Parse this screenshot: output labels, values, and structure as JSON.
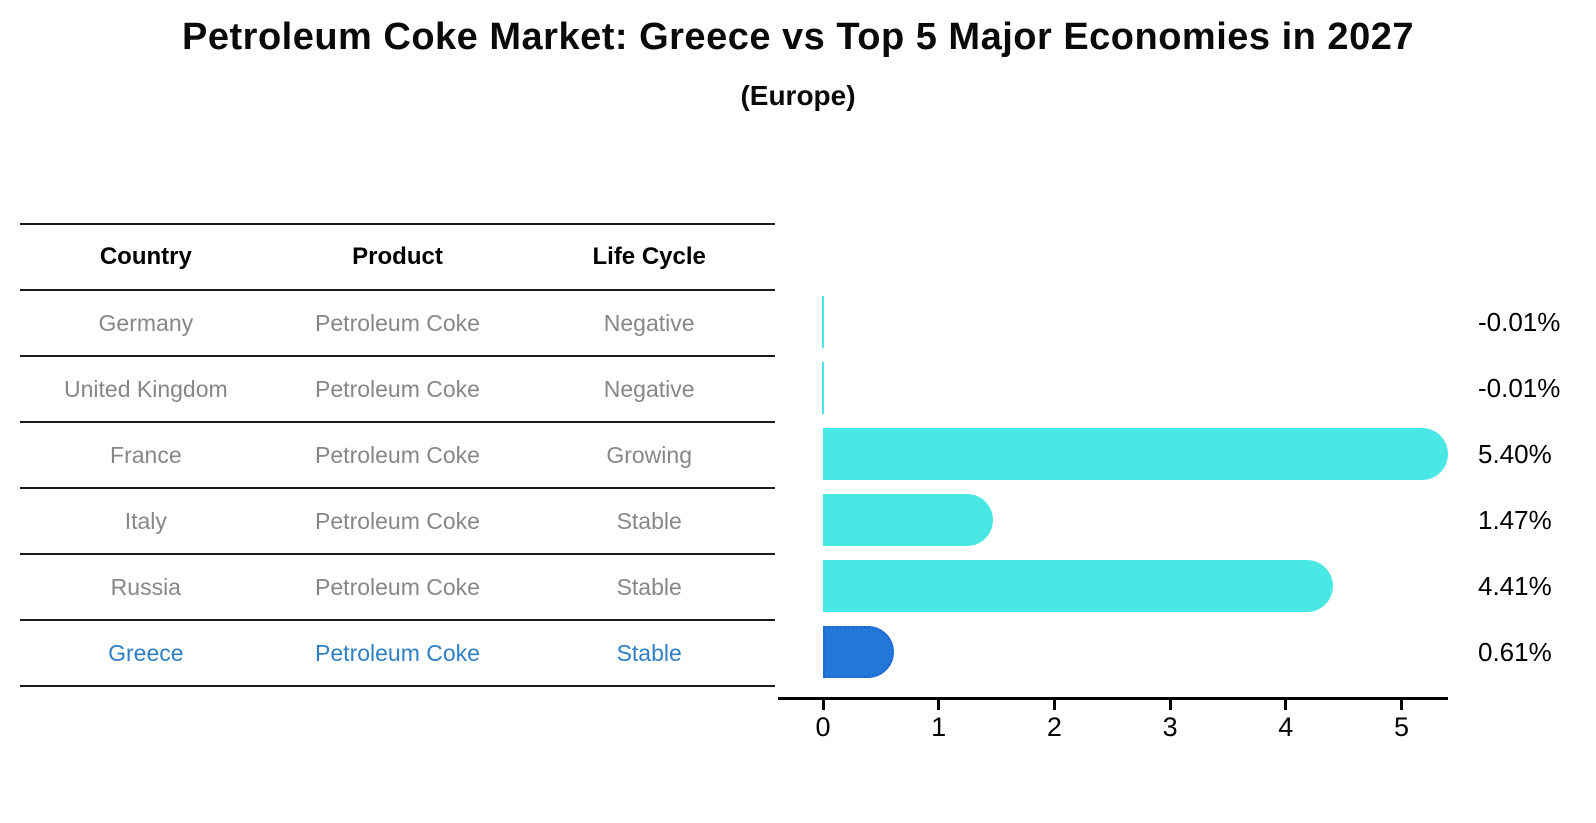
{
  "title": "Petroleum Coke Market: Greece vs Top 5 Major Economies in 2027",
  "subtitle": "(Europe)",
  "table": {
    "headers": [
      "Country",
      "Product",
      "Life Cycle"
    ],
    "rows": [
      {
        "country": "Germany",
        "product": "Petroleum Coke",
        "life_cycle": "Negative",
        "highlight": false
      },
      {
        "country": "United Kingdom",
        "product": "Petroleum Coke",
        "life_cycle": "Negative",
        "highlight": false
      },
      {
        "country": "France",
        "product": "Petroleum Coke",
        "life_cycle": "Growing",
        "highlight": false
      },
      {
        "country": "Italy",
        "product": "Petroleum Coke",
        "life_cycle": "Stable",
        "highlight": false
      },
      {
        "country": "Russia",
        "product": "Petroleum Coke",
        "life_cycle": "Stable",
        "highlight": false
      },
      {
        "country": "Greece",
        "product": "Petroleum Coke",
        "life_cycle": "Stable",
        "highlight": true
      }
    ]
  },
  "chart_data": {
    "type": "bar",
    "orientation": "horizontal",
    "title": "Petroleum Coke Market: Greece vs Top 5 Major Economies in 2027 (Europe)",
    "categories": [
      "Germany",
      "United Kingdom",
      "France",
      "Italy",
      "Russia",
      "Greece"
    ],
    "values": [
      -0.01,
      -0.01,
      5.4,
      1.47,
      4.41,
      0.61
    ],
    "value_labels": [
      "-0.01%",
      "-0.01%",
      "5.40%",
      "1.47%",
      "4.41%",
      "0.61%"
    ],
    "xlabel": "",
    "ylabel": "",
    "xticks": [
      0,
      1,
      2,
      3,
      4,
      5
    ],
    "xlim": [
      -0.39,
      5.43
    ],
    "grid": false,
    "legend": false,
    "highlight_index": 5,
    "colors": {
      "bar": "#4ae8e4",
      "highlight_bar": "#2377db",
      "highlight_border": "#1a66c9",
      "axis": "#000000",
      "value_label": "#000000",
      "table_text": "#878787",
      "highlight_text": "#2e7fc4"
    }
  }
}
